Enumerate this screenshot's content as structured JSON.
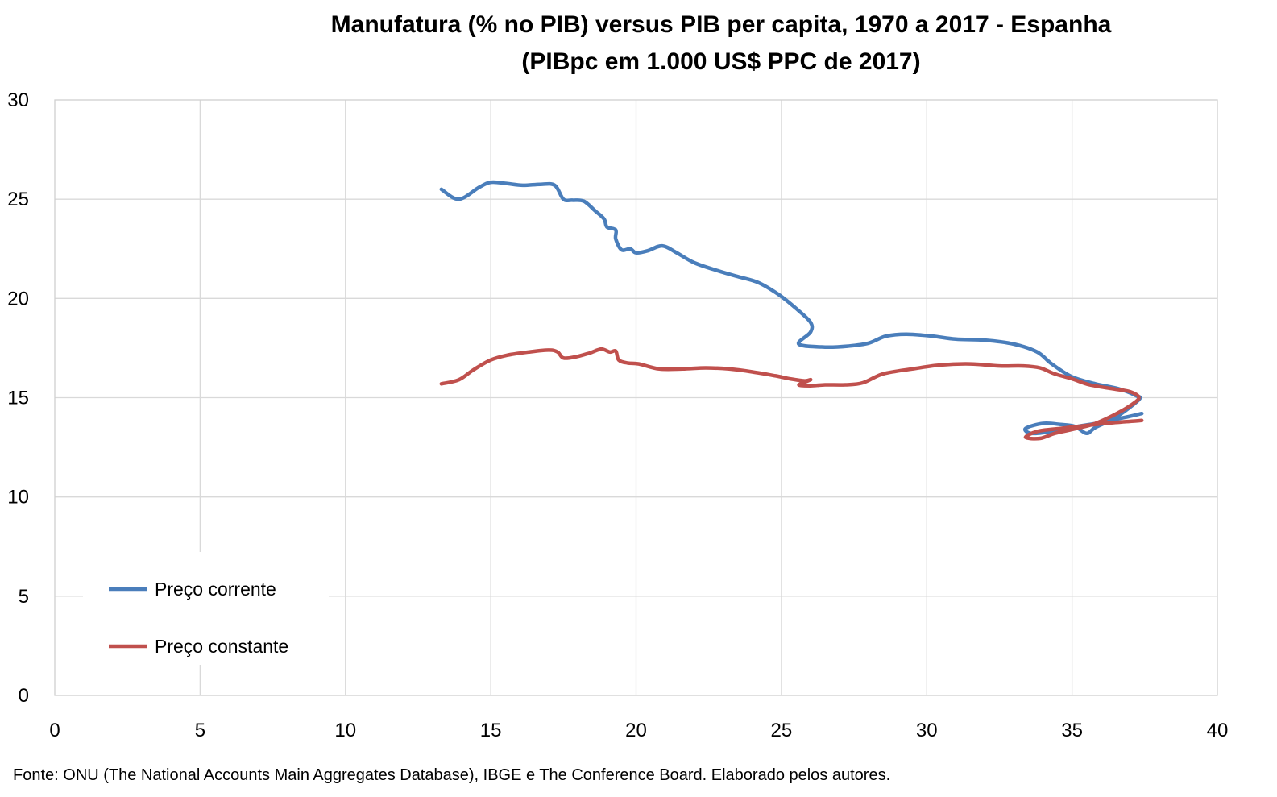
{
  "chart_data": {
    "type": "line",
    "title": "Manufatura (% no PIB) versus PIB per capita, 1970 a 2017 - Espanha",
    "subtitle": "(PIBpc em 1.000 US$ PPC de 2017)",
    "xlabel": "",
    "ylabel": "",
    "xlim": [
      0,
      40
    ],
    "ylim": [
      0,
      30
    ],
    "x_ticks": [
      "0",
      "5",
      "10",
      "15",
      "20",
      "25",
      "30",
      "35",
      "40"
    ],
    "y_ticks": [
      "0",
      "5",
      "10",
      "15",
      "20",
      "25",
      "30"
    ],
    "grid": true,
    "legend_position": "bottom-left",
    "series": [
      {
        "name": "Preço corrente",
        "color": "#4a7ebb",
        "points": [
          [
            13.3,
            25.5
          ],
          [
            13.9,
            25.0
          ],
          [
            14.6,
            25.6
          ],
          [
            15.0,
            25.85
          ],
          [
            15.5,
            25.8
          ],
          [
            16.1,
            25.7
          ],
          [
            16.7,
            25.75
          ],
          [
            17.2,
            25.7
          ],
          [
            17.5,
            25.0
          ],
          [
            17.8,
            24.95
          ],
          [
            18.2,
            24.9
          ],
          [
            18.6,
            24.4
          ],
          [
            18.9,
            24.0
          ],
          [
            19.0,
            23.6
          ],
          [
            19.3,
            23.45
          ],
          [
            19.3,
            23.0
          ],
          [
            19.5,
            22.45
          ],
          [
            19.8,
            22.5
          ],
          [
            20.0,
            22.3
          ],
          [
            20.4,
            22.4
          ],
          [
            20.9,
            22.65
          ],
          [
            21.4,
            22.3
          ],
          [
            22.0,
            21.8
          ],
          [
            22.8,
            21.4
          ],
          [
            23.5,
            21.1
          ],
          [
            24.2,
            20.8
          ],
          [
            24.9,
            20.2
          ],
          [
            25.5,
            19.5
          ],
          [
            26.0,
            18.8
          ],
          [
            26.0,
            18.3
          ],
          [
            25.6,
            17.7
          ],
          [
            26.5,
            17.55
          ],
          [
            27.3,
            17.6
          ],
          [
            28.0,
            17.75
          ],
          [
            28.6,
            18.1
          ],
          [
            29.3,
            18.2
          ],
          [
            30.2,
            18.1
          ],
          [
            31.0,
            17.95
          ],
          [
            32.0,
            17.9
          ],
          [
            33.0,
            17.7
          ],
          [
            33.8,
            17.3
          ],
          [
            34.3,
            16.7
          ],
          [
            35.0,
            16.05
          ],
          [
            35.8,
            15.7
          ],
          [
            36.6,
            15.45
          ],
          [
            37.2,
            15.1
          ],
          [
            37.3,
            14.9
          ],
          [
            36.5,
            14.0
          ],
          [
            35.8,
            13.5
          ],
          [
            35.5,
            13.2
          ],
          [
            35.1,
            13.55
          ],
          [
            34.6,
            13.65
          ],
          [
            34.0,
            13.7
          ],
          [
            33.4,
            13.45
          ],
          [
            33.6,
            13.2
          ],
          [
            34.3,
            13.3
          ],
          [
            35.2,
            13.55
          ],
          [
            36.0,
            13.75
          ],
          [
            36.8,
            14.0
          ],
          [
            37.4,
            14.2
          ]
        ]
      },
      {
        "name": "Preço constante",
        "color": "#c0504d",
        "points": [
          [
            13.3,
            15.7
          ],
          [
            13.9,
            15.9
          ],
          [
            14.4,
            16.4
          ],
          [
            15.0,
            16.9
          ],
          [
            15.6,
            17.15
          ],
          [
            16.3,
            17.3
          ],
          [
            17.0,
            17.4
          ],
          [
            17.3,
            17.3
          ],
          [
            17.5,
            17.0
          ],
          [
            17.9,
            17.05
          ],
          [
            18.4,
            17.25
          ],
          [
            18.8,
            17.45
          ],
          [
            19.1,
            17.3
          ],
          [
            19.3,
            17.35
          ],
          [
            19.4,
            16.9
          ],
          [
            19.7,
            16.75
          ],
          [
            20.1,
            16.7
          ],
          [
            20.8,
            16.45
          ],
          [
            21.6,
            16.45
          ],
          [
            22.4,
            16.5
          ],
          [
            23.2,
            16.45
          ],
          [
            24.0,
            16.3
          ],
          [
            24.8,
            16.1
          ],
          [
            25.3,
            15.95
          ],
          [
            25.8,
            15.85
          ],
          [
            26.0,
            15.9
          ],
          [
            25.6,
            15.65
          ],
          [
            26.0,
            15.6
          ],
          [
            26.5,
            15.65
          ],
          [
            27.2,
            15.65
          ],
          [
            27.8,
            15.75
          ],
          [
            28.5,
            16.2
          ],
          [
            29.5,
            16.45
          ],
          [
            30.5,
            16.65
          ],
          [
            31.5,
            16.7
          ],
          [
            32.5,
            16.6
          ],
          [
            33.3,
            16.6
          ],
          [
            33.9,
            16.5
          ],
          [
            34.4,
            16.2
          ],
          [
            35.0,
            15.95
          ],
          [
            35.6,
            15.65
          ],
          [
            36.4,
            15.45
          ],
          [
            37.0,
            15.3
          ],
          [
            37.3,
            15.0
          ],
          [
            37.0,
            14.6
          ],
          [
            36.4,
            14.1
          ],
          [
            35.7,
            13.65
          ],
          [
            35.0,
            13.4
          ],
          [
            34.4,
            13.2
          ],
          [
            33.9,
            12.95
          ],
          [
            33.4,
            13.0
          ],
          [
            33.8,
            13.3
          ],
          [
            34.6,
            13.45
          ],
          [
            35.5,
            13.6
          ],
          [
            36.5,
            13.75
          ],
          [
            37.4,
            13.85
          ]
        ]
      }
    ],
    "source": "Fonte: ONU (The National Accounts Main Aggregates Database), IBGE e The Conference Board. Elaborado pelos autores."
  }
}
